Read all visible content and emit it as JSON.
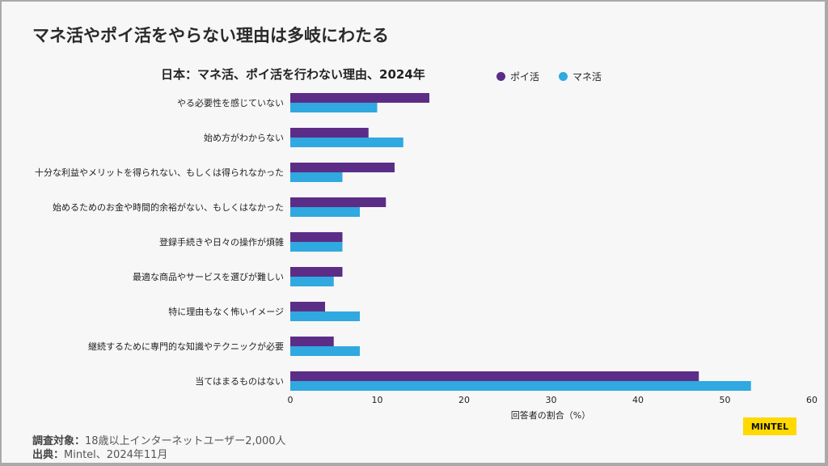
{
  "page_title": "マネ活やポイ活をやらない理由は多岐にわたる",
  "footer": {
    "sample_label": "調査対象：",
    "sample_value": "18歳以上インターネットユーザー2,000人",
    "source_label": "出典：",
    "source_value": "Mintel、2024年11月"
  },
  "logo_text": "MINTEL",
  "chart_data": {
    "type": "bar",
    "orientation": "horizontal",
    "title": "日本：マネ活、ポイ活を行わない理由、2024年",
    "xlabel": "回答者の割合（%）",
    "ylabel": "",
    "xlim": [
      0,
      60
    ],
    "xticks": [
      "0",
      "10",
      "20",
      "30",
      "40",
      "50",
      "60"
    ],
    "grid": false,
    "legend_position": "top-right",
    "categories": [
      "やる必要性を感じていない",
      "始め方がわからない",
      "十分な利益やメリットを得られない、もしくは得られなかった",
      "始めるためのお金や時間的余裕がない、もしくはなかった",
      "登録手続きや日々の操作が煩雑",
      "最適な商品やサービスを選びが難しい",
      "特に理由もなく怖いイメージ",
      "継続するために専門的な知識やテクニックが必要",
      "当てはまるものはない"
    ],
    "series": [
      {
        "name": "ポイ活",
        "color": "#5c2d87",
        "values": [
          16,
          9,
          12,
          11,
          6,
          6,
          4,
          5,
          47
        ]
      },
      {
        "name": "マネ活",
        "color": "#30a8e0",
        "values": [
          10,
          13,
          6,
          8,
          6,
          5,
          8,
          8,
          53
        ]
      }
    ]
  }
}
